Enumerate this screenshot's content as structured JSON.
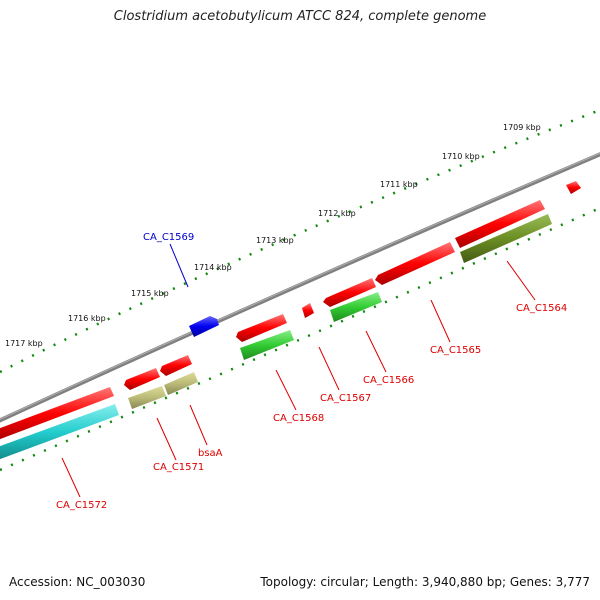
{
  "title": "Clostridium acetobutylicum ATCC 824, complete genome",
  "footer": {
    "accession": "Accession: NC_003030",
    "summary": "Topology: circular; Length: 3,940,880 bp; Genes: 3,777"
  },
  "scale_labels": [
    "1709 kbp",
    "1710 kbp",
    "1711 kbp",
    "1712 kbp",
    "1713 kbp",
    "1714 kbp",
    "1715 kbp",
    "1716 kbp",
    "1717 kbp"
  ],
  "gene_labels": [
    "CA_C1564",
    "CA_C1565",
    "CA_C1566",
    "CA_C1567",
    "CA_C1568",
    "CA_C1569",
    "CA_C1571",
    "bsaA",
    "CA_C1572"
  ],
  "colors": {
    "backbone": "#808080",
    "forward_cds": "#ff0000",
    "reverse_cds": "#ff0000",
    "label_forward": "#dd0000",
    "label_reverse_blue": "#0000cc",
    "tick": "#118811",
    "cyan": "#22cccc",
    "olive_light": "#bbbb77",
    "olive_dark": "#6b8e23",
    "green": "#33cc33",
    "blue_cds": "#0000ee"
  }
}
